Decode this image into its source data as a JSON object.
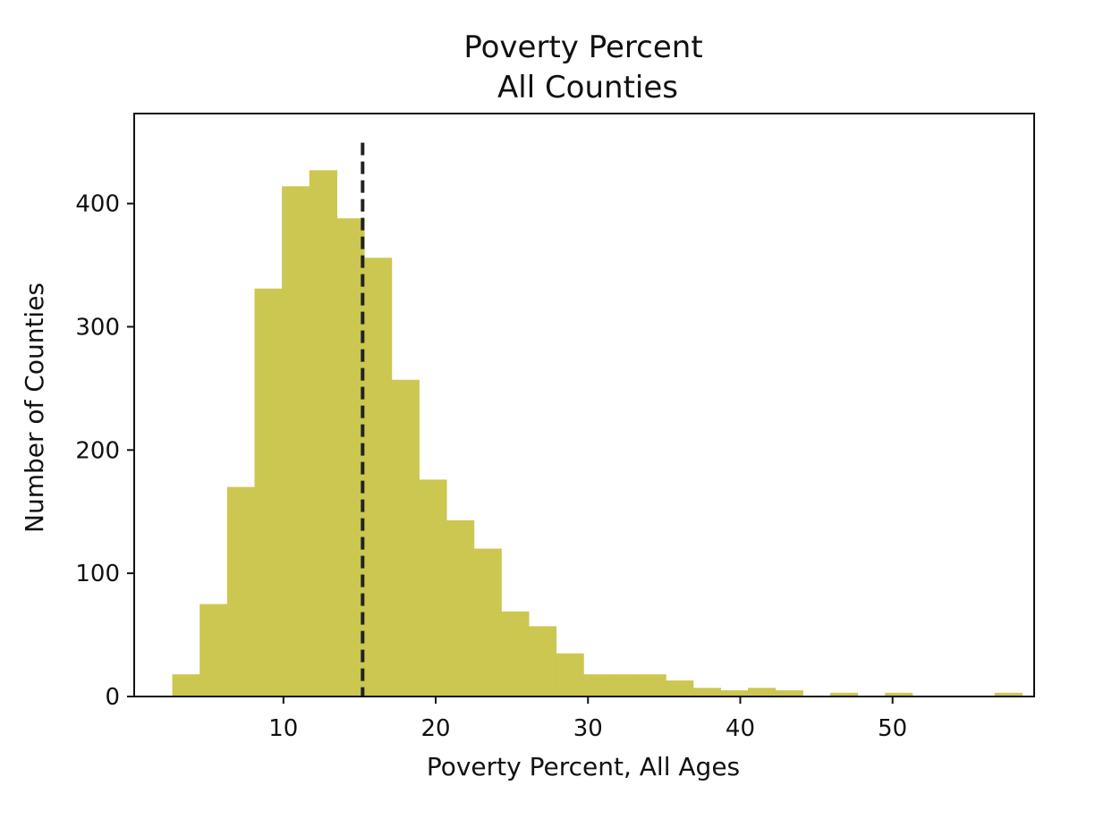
{
  "chart_data": {
    "type": "bar",
    "title_lines": [
      "Poverty Percent",
      "All Counties"
    ],
    "xlabel": "Poverty Percent, All Ages",
    "ylabel": "Number of Counties",
    "xlim": [
      0.2,
      59.3
    ],
    "ylim": [
      0,
      473
    ],
    "x_ticks": [
      10,
      20,
      30,
      40,
      50
    ],
    "y_ticks": [
      0,
      100,
      200,
      300,
      400
    ],
    "grid": false,
    "bar_color": "#cbc751",
    "mean_line": {
      "x": 15.2,
      "color": "#222222",
      "style": "dashed"
    },
    "bin_start": 2.7,
    "bin_width": 1.8,
    "counts": [
      18,
      75,
      170,
      331,
      414,
      427,
      388,
      356,
      257,
      176,
      143,
      120,
      69,
      57,
      35,
      18,
      18,
      18,
      13,
      7,
      5,
      7,
      5,
      0,
      3,
      0,
      3,
      0,
      0,
      0,
      3
    ]
  }
}
